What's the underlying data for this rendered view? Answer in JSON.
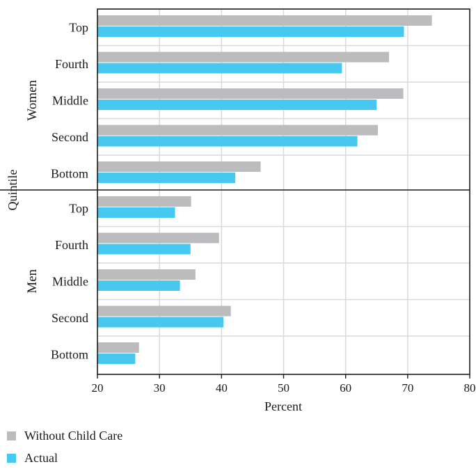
{
  "chart_data": {
    "type": "bar",
    "orientation": "horizontal",
    "xlabel": "Percent",
    "ylabel": "Quintile",
    "xlim": [
      20,
      80
    ],
    "xticks": [
      20,
      30,
      40,
      50,
      60,
      70,
      80
    ],
    "grid": true,
    "legend_position": "bottom-left",
    "groups": [
      {
        "name": "Women",
        "categories": [
          "Top",
          "Fourth",
          "Middle",
          "Second",
          "Bottom"
        ],
        "series": [
          {
            "name": "Without Child Care",
            "color": "#bcbcbe",
            "values": [
              73.9,
              67.0,
              69.3,
              65.2,
              46.3
            ]
          },
          {
            "name": "Actual",
            "color": "#47c8f0",
            "values": [
              69.4,
              59.4,
              65.0,
              61.9,
              42.2
            ]
          }
        ]
      },
      {
        "name": "Men",
        "categories": [
          "Top",
          "Fourth",
          "Middle",
          "Second",
          "Bottom"
        ],
        "series": [
          {
            "name": "Without Child Care",
            "color": "#bcbcbe",
            "values": [
              35.1,
              39.6,
              35.8,
              41.5,
              26.7
            ]
          },
          {
            "name": "Actual",
            "color": "#47c8f0",
            "values": [
              32.5,
              35.0,
              33.3,
              40.3,
              26.1
            ]
          }
        ]
      }
    ]
  },
  "legend": {
    "items": [
      {
        "label": "Without Child Care",
        "color": "#bcbcbe"
      },
      {
        "label": "Actual",
        "color": "#47c8f0"
      }
    ]
  }
}
